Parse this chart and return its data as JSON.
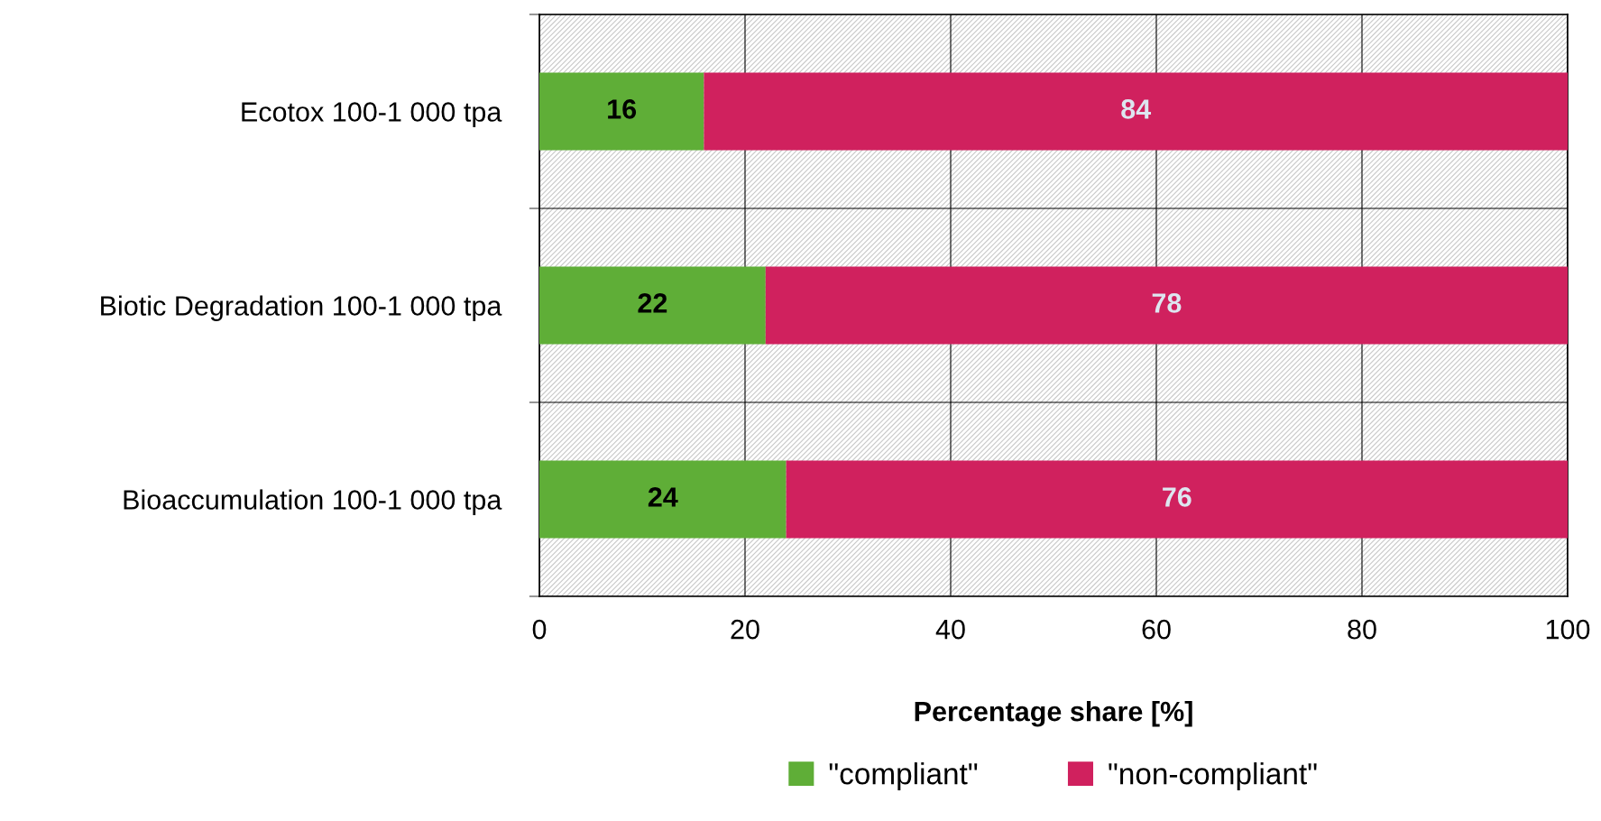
{
  "chart_data": {
    "type": "bar",
    "orientation": "horizontal",
    "stacked": true,
    "xlabel": "Percentage share [%]",
    "categories": [
      "Ecotox 100-1 000 tpa",
      "Biotic Degradation 100-1 000 tpa",
      "Bioaccumulation 100-1 000 tpa"
    ],
    "series": [
      {
        "name": "\"compliant\"",
        "color": "#5fae37",
        "values": [
          16,
          22,
          24
        ]
      },
      {
        "name": "\"non-compliant\"",
        "color": "#d0215e",
        "values": [
          84,
          78,
          76
        ]
      }
    ],
    "xlim": [
      0,
      100
    ],
    "xticks": [
      0,
      20,
      40,
      60,
      80,
      100
    ],
    "grid": true,
    "legend": "bottom",
    "data_labels": true
  }
}
